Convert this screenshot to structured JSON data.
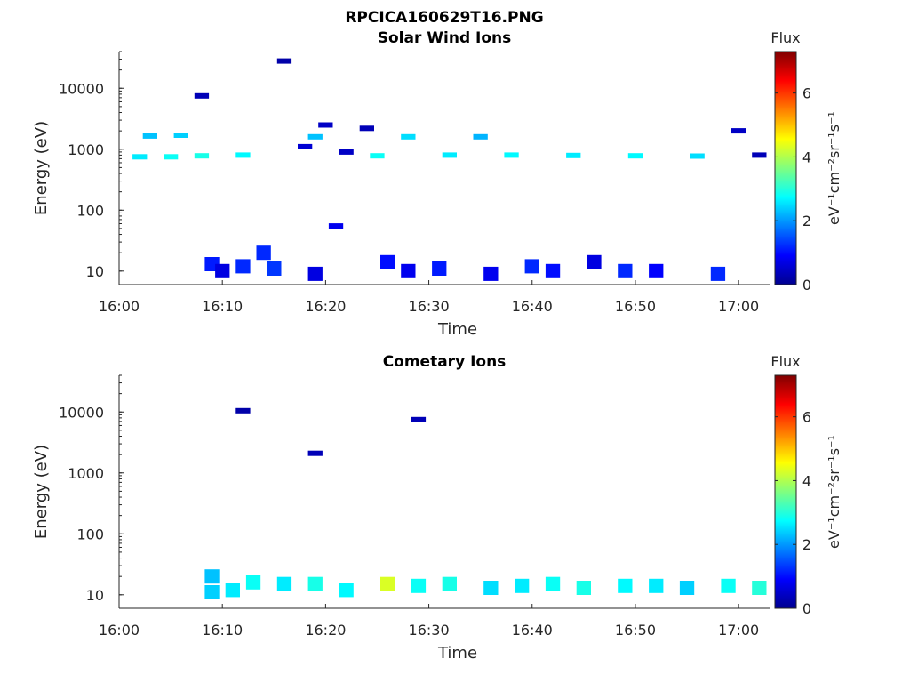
{
  "figure": {
    "title": "RPCICA160629T16.PNG"
  },
  "chart_data": [
    {
      "type": "heatmap",
      "title": "Solar Wind Ions",
      "xlabel": "Time",
      "ylabel": "Energy (eV)",
      "y_scale": "log",
      "xlim": [
        "16:00",
        "17:03"
      ],
      "ylim": [
        6,
        40000
      ],
      "x_ticks": [
        "16:00",
        "16:10",
        "16:20",
        "16:30",
        "16:40",
        "16:50",
        "17:00"
      ],
      "y_ticks": [
        "10",
        "100",
        "1000",
        "10000"
      ],
      "colorbar": {
        "title": "Flux",
        "label": "eV⁻¹cm⁻²sr⁻¹s⁻¹",
        "range": [
          0,
          7.3
        ],
        "ticks": [
          "0",
          "2",
          "4",
          "6"
        ],
        "colormap": "jet"
      },
      "cells": [
        {
          "t": "16:02",
          "e": 750,
          "v": 2.6
        },
        {
          "t": "16:03",
          "e": 1650,
          "v": 2.3
        },
        {
          "t": "16:05",
          "e": 750,
          "v": 2.8
        },
        {
          "t": "16:06",
          "e": 1700,
          "v": 2.4
        },
        {
          "t": "16:08",
          "e": 7500,
          "v": 0.4
        },
        {
          "t": "16:08",
          "e": 780,
          "v": 2.9
        },
        {
          "t": "16:09",
          "e": 13,
          "v": 1.1
        },
        {
          "t": "16:10",
          "e": 10,
          "v": 0.7
        },
        {
          "t": "16:12",
          "e": 12,
          "v": 1.2
        },
        {
          "t": "16:12",
          "e": 800,
          "v": 2.7
        },
        {
          "t": "16:14",
          "e": 20,
          "v": 1.2
        },
        {
          "t": "16:15",
          "e": 11,
          "v": 1.3
        },
        {
          "t": "16:16",
          "e": 28000,
          "v": 0.3
        },
        {
          "t": "16:18",
          "e": 1100,
          "v": 0.6
        },
        {
          "t": "16:19",
          "e": 1600,
          "v": 2.3
        },
        {
          "t": "16:19",
          "e": 9,
          "v": 0.7
        },
        {
          "t": "16:20",
          "e": 2500,
          "v": 0.5
        },
        {
          "t": "16:21",
          "e": 55,
          "v": 0.8
        },
        {
          "t": "16:22",
          "e": 900,
          "v": 0.5
        },
        {
          "t": "16:24",
          "e": 2200,
          "v": 0.4
        },
        {
          "t": "16:25",
          "e": 780,
          "v": 2.8
        },
        {
          "t": "16:26",
          "e": 14,
          "v": 1.0
        },
        {
          "t": "16:28",
          "e": 1600,
          "v": 2.5
        },
        {
          "t": "16:28",
          "e": 10,
          "v": 0.8
        },
        {
          "t": "16:31",
          "e": 11,
          "v": 1.1
        },
        {
          "t": "16:32",
          "e": 800,
          "v": 2.6
        },
        {
          "t": "16:35",
          "e": 1600,
          "v": 2.2
        },
        {
          "t": "16:36",
          "e": 9,
          "v": 0.8
        },
        {
          "t": "16:38",
          "e": 800,
          "v": 2.7
        },
        {
          "t": "16:40",
          "e": 12,
          "v": 1.2
        },
        {
          "t": "16:42",
          "e": 10,
          "v": 1.0
        },
        {
          "t": "16:44",
          "e": 790,
          "v": 2.6
        },
        {
          "t": "16:46",
          "e": 14,
          "v": 0.7
        },
        {
          "t": "16:49",
          "e": 10,
          "v": 1.2
        },
        {
          "t": "16:50",
          "e": 780,
          "v": 2.7
        },
        {
          "t": "16:52",
          "e": 10,
          "v": 0.9
        },
        {
          "t": "16:56",
          "e": 770,
          "v": 2.5
        },
        {
          "t": "16:58",
          "e": 9,
          "v": 1.2
        },
        {
          "t": "17:00",
          "e": 2000,
          "v": 0.5
        },
        {
          "t": "17:02",
          "e": 800,
          "v": 0.4
        }
      ]
    },
    {
      "type": "heatmap",
      "title": "Cometary Ions",
      "xlabel": "Time",
      "ylabel": "Energy (eV)",
      "y_scale": "log",
      "xlim": [
        "16:00",
        "17:03"
      ],
      "ylim": [
        6,
        40000
      ],
      "x_ticks": [
        "16:00",
        "16:10",
        "16:20",
        "16:30",
        "16:40",
        "16:50",
        "17:00"
      ],
      "y_ticks": [
        "10",
        "100",
        "1000",
        "10000"
      ],
      "colorbar": {
        "title": "Flux",
        "label": "eV⁻¹cm⁻²sr⁻¹s⁻¹",
        "range": [
          0,
          7.3
        ],
        "ticks": [
          "0",
          "2",
          "4",
          "6"
        ],
        "colormap": "jet"
      },
      "cells": [
        {
          "t": "16:09",
          "e": 20,
          "v": 2.3
        },
        {
          "t": "16:09",
          "e": 11,
          "v": 2.4
        },
        {
          "t": "16:11",
          "e": 12,
          "v": 2.6
        },
        {
          "t": "16:12",
          "e": 10500,
          "v": 0.3
        },
        {
          "t": "16:13",
          "e": 16,
          "v": 2.8
        },
        {
          "t": "16:16",
          "e": 15,
          "v": 2.6
        },
        {
          "t": "16:19",
          "e": 15,
          "v": 2.9
        },
        {
          "t": "16:19",
          "e": 2100,
          "v": 0.4
        },
        {
          "t": "16:22",
          "e": 12,
          "v": 2.7
        },
        {
          "t": "16:26",
          "e": 15,
          "v": 4.3
        },
        {
          "t": "16:29",
          "e": 14,
          "v": 2.8
        },
        {
          "t": "16:29",
          "e": 7500,
          "v": 0.4
        },
        {
          "t": "16:32",
          "e": 15,
          "v": 2.9
        },
        {
          "t": "16:36",
          "e": 13,
          "v": 2.5
        },
        {
          "t": "16:39",
          "e": 14,
          "v": 2.6
        },
        {
          "t": "16:42",
          "e": 15,
          "v": 2.8
        },
        {
          "t": "16:45",
          "e": 13,
          "v": 2.9
        },
        {
          "t": "16:49",
          "e": 14,
          "v": 2.7
        },
        {
          "t": "16:52",
          "e": 14,
          "v": 2.6
        },
        {
          "t": "16:55",
          "e": 13,
          "v": 2.4
        },
        {
          "t": "16:59",
          "e": 14,
          "v": 2.8
        },
        {
          "t": "17:02",
          "e": 13,
          "v": 3.0
        }
      ]
    }
  ]
}
